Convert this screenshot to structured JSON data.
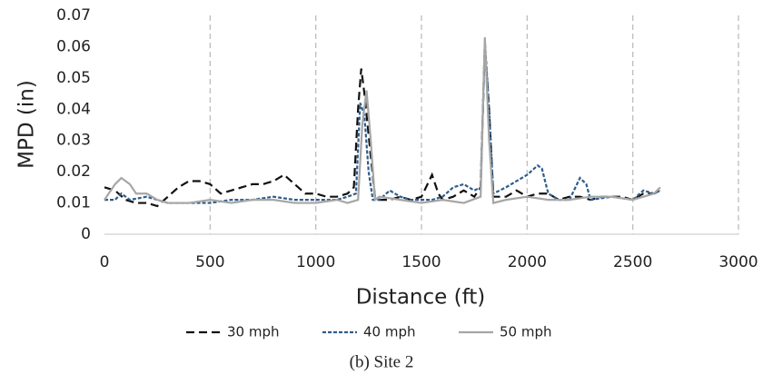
{
  "chart_data": {
    "type": "line",
    "caption": "(b) Site 2",
    "x_label": "Distance (ft)",
    "y_label": "MPD (in)",
    "xlim": [
      0,
      3000
    ],
    "xticks": [
      0,
      500,
      1000,
      1500,
      2000,
      2500,
      3000
    ],
    "ylim": [
      0,
      0.07
    ],
    "yticks": [
      0,
      0.01,
      0.02,
      0.03,
      0.04,
      0.05,
      0.06,
      0.07
    ],
    "grid": "x",
    "legend": "bottom",
    "series": [
      {
        "name": "30 mph",
        "color": "#111111",
        "dash": "long-dash",
        "x": [
          0,
          50,
          100,
          150,
          200,
          250,
          300,
          350,
          400,
          450,
          500,
          550,
          600,
          650,
          700,
          750,
          800,
          850,
          900,
          950,
          1000,
          1050,
          1100,
          1150,
          1180,
          1200,
          1215,
          1230,
          1260,
          1280,
          1300,
          1350,
          1400,
          1450,
          1500,
          1550,
          1580,
          1600,
          1650,
          1700,
          1750,
          1780,
          1800,
          1820,
          1840,
          1900,
          1950,
          2000,
          2050,
          2100,
          2150,
          2200,
          2250,
          2300,
          2350,
          2400,
          2450,
          2500,
          2550,
          2600,
          2630
        ],
        "values": [
          0.015,
          0.014,
          0.011,
          0.01,
          0.01,
          0.009,
          0.012,
          0.015,
          0.017,
          0.017,
          0.016,
          0.013,
          0.014,
          0.015,
          0.016,
          0.016,
          0.017,
          0.019,
          0.016,
          0.013,
          0.013,
          0.012,
          0.012,
          0.013,
          0.015,
          0.04,
          0.053,
          0.045,
          0.025,
          0.012,
          0.011,
          0.011,
          0.012,
          0.011,
          0.012,
          0.019,
          0.013,
          0.011,
          0.012,
          0.014,
          0.012,
          0.015,
          0.06,
          0.04,
          0.012,
          0.012,
          0.014,
          0.012,
          0.013,
          0.013,
          0.011,
          0.012,
          0.012,
          0.011,
          0.012,
          0.012,
          0.012,
          0.011,
          0.013,
          0.013,
          0.014
        ]
      },
      {
        "name": "40 mph",
        "color": "#2e5d8a",
        "dash": "short-dash",
        "x": [
          0,
          50,
          80,
          120,
          200,
          250,
          300,
          400,
          500,
          600,
          700,
          800,
          900,
          1000,
          1100,
          1150,
          1190,
          1210,
          1230,
          1250,
          1270,
          1300,
          1350,
          1400,
          1450,
          1500,
          1550,
          1600,
          1650,
          1700,
          1750,
          1780,
          1800,
          1820,
          1840,
          1900,
          1950,
          2000,
          2050,
          2070,
          2100,
          2150,
          2200,
          2250,
          2280,
          2300,
          2400,
          2500,
          2550,
          2600,
          2630
        ],
        "values": [
          0.011,
          0.011,
          0.013,
          0.011,
          0.012,
          0.011,
          0.01,
          0.01,
          0.01,
          0.011,
          0.011,
          0.012,
          0.011,
          0.011,
          0.011,
          0.012,
          0.013,
          0.042,
          0.038,
          0.02,
          0.011,
          0.011,
          0.014,
          0.012,
          0.011,
          0.011,
          0.011,
          0.012,
          0.015,
          0.016,
          0.014,
          0.015,
          0.062,
          0.04,
          0.013,
          0.015,
          0.017,
          0.019,
          0.022,
          0.021,
          0.013,
          0.011,
          0.011,
          0.018,
          0.016,
          0.011,
          0.012,
          0.011,
          0.014,
          0.013,
          0.014
        ]
      },
      {
        "name": "50 mph",
        "color": "#a6a6a6",
        "dash": "solid",
        "x": [
          0,
          50,
          80,
          120,
          150,
          200,
          250,
          300,
          400,
          500,
          600,
          700,
          800,
          900,
          1000,
          1100,
          1150,
          1200,
          1220,
          1240,
          1260,
          1280,
          1300,
          1400,
          1500,
          1600,
          1700,
          1780,
          1800,
          1820,
          1840,
          1900,
          2000,
          2100,
          2200,
          2300,
          2400,
          2500,
          2600,
          2630
        ],
        "values": [
          0.011,
          0.016,
          0.018,
          0.016,
          0.013,
          0.013,
          0.011,
          0.01,
          0.01,
          0.011,
          0.01,
          0.011,
          0.011,
          0.01,
          0.01,
          0.011,
          0.01,
          0.011,
          0.035,
          0.046,
          0.03,
          0.011,
          0.012,
          0.011,
          0.01,
          0.011,
          0.01,
          0.012,
          0.063,
          0.03,
          0.01,
          0.011,
          0.012,
          0.011,
          0.011,
          0.012,
          0.012,
          0.011,
          0.013,
          0.015
        ]
      }
    ]
  }
}
